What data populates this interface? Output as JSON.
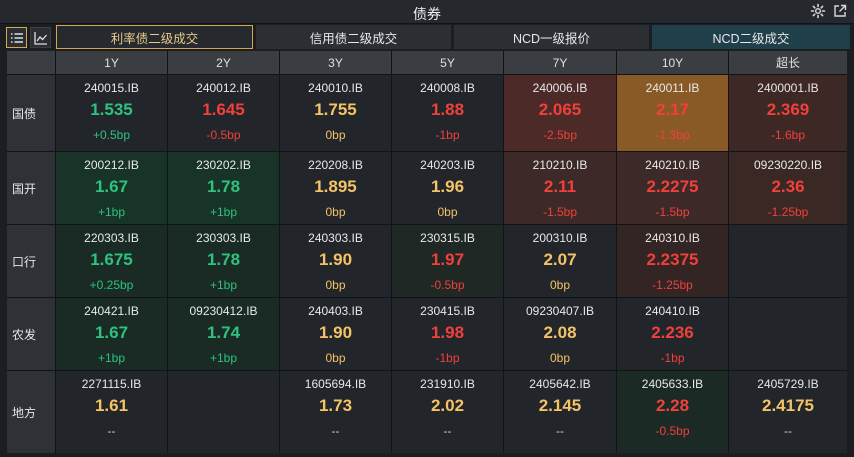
{
  "window": {
    "title": "债券"
  },
  "tabs": [
    "利率债二级成交",
    "信用债二级成交",
    "NCD一级报价",
    "NCD二级成交"
  ],
  "columns": [
    "1Y",
    "2Y",
    "3Y",
    "5Y",
    "7Y",
    "10Y",
    "超长"
  ],
  "rows": [
    {
      "label": "国债",
      "cells": [
        {
          "code": "240015.IB",
          "rate": "1.535",
          "change": "+0.5bp",
          "trend": "up"
        },
        {
          "code": "240012.IB",
          "rate": "1.645",
          "change": "-0.5bp",
          "trend": "down"
        },
        {
          "code": "240010.IB",
          "rate": "1.755",
          "change": "0bp",
          "trend": "flat"
        },
        {
          "code": "240008.IB",
          "rate": "1.88",
          "change": "-1bp",
          "trend": "down"
        },
        {
          "code": "240006.IB",
          "rate": "2.065",
          "change": "-2.5bp",
          "trend": "down"
        },
        {
          "code": "240011.IB",
          "rate": "2.17",
          "change": "-1.3bp",
          "trend": "down"
        },
        {
          "code": "2400001.IB",
          "rate": "2.369",
          "change": "-1.6bp",
          "trend": "down"
        }
      ]
    },
    {
      "label": "国开",
      "cells": [
        {
          "code": "200212.IB",
          "rate": "1.67",
          "change": "+1bp",
          "trend": "up"
        },
        {
          "code": "230202.IB",
          "rate": "1.78",
          "change": "+1bp",
          "trend": "up"
        },
        {
          "code": "220208.IB",
          "rate": "1.895",
          "change": "0bp",
          "trend": "flat"
        },
        {
          "code": "240203.IB",
          "rate": "1.96",
          "change": "0bp",
          "trend": "flat"
        },
        {
          "code": "210210.IB",
          "rate": "2.11",
          "change": "-1.5bp",
          "trend": "down"
        },
        {
          "code": "240210.IB",
          "rate": "2.2275",
          "change": "-1.5bp",
          "trend": "down"
        },
        {
          "code": "09230220.IB",
          "rate": "2.36",
          "change": "-1.25bp",
          "trend": "down"
        }
      ]
    },
    {
      "label": "口行",
      "cells": [
        {
          "code": "220303.IB",
          "rate": "1.675",
          "change": "+0.25bp",
          "trend": "up"
        },
        {
          "code": "230303.IB",
          "rate": "1.78",
          "change": "+1bp",
          "trend": "up"
        },
        {
          "code": "240303.IB",
          "rate": "1.90",
          "change": "0bp",
          "trend": "flat"
        },
        {
          "code": "230315.IB",
          "rate": "1.97",
          "change": "-0.5bp",
          "trend": "down"
        },
        {
          "code": "200310.IB",
          "rate": "2.07",
          "change": "0bp",
          "trend": "flat"
        },
        {
          "code": "240310.IB",
          "rate": "2.2375",
          "change": "-1.25bp",
          "trend": "down"
        },
        {
          "code": "",
          "rate": "",
          "change": "",
          "trend": "none"
        }
      ]
    },
    {
      "label": "农发",
      "cells": [
        {
          "code": "240421.IB",
          "rate": "1.67",
          "change": "+1bp",
          "trend": "up"
        },
        {
          "code": "09230412.IB",
          "rate": "1.74",
          "change": "+1bp",
          "trend": "up"
        },
        {
          "code": "240403.IB",
          "rate": "1.90",
          "change": "0bp",
          "trend": "flat"
        },
        {
          "code": "230415.IB",
          "rate": "1.98",
          "change": "-1bp",
          "trend": "down"
        },
        {
          "code": "09230407.IB",
          "rate": "2.08",
          "change": "0bp",
          "trend": "flat"
        },
        {
          "code": "240410.IB",
          "rate": "2.236",
          "change": "-1bp",
          "trend": "down"
        },
        {
          "code": "",
          "rate": "",
          "change": "",
          "trend": "none"
        }
      ]
    },
    {
      "label": "地方",
      "cells": [
        {
          "code": "2271115.IB",
          "rate": "1.61",
          "change": "--",
          "trend": "none"
        },
        {
          "code": "",
          "rate": "",
          "change": "",
          "trend": "none"
        },
        {
          "code": "1605694.IB",
          "rate": "1.73",
          "change": "--",
          "trend": "none"
        },
        {
          "code": "231910.IB",
          "rate": "2.02",
          "change": "--",
          "trend": "none"
        },
        {
          "code": "2405642.IB",
          "rate": "2.145",
          "change": "--",
          "trend": "none"
        },
        {
          "code": "2405633.IB",
          "rate": "2.28",
          "change": "-0.5bp",
          "trend": "down"
        },
        {
          "code": "2405729.IB",
          "rate": "2.4175",
          "change": "--",
          "trend": "none"
        }
      ]
    }
  ],
  "colors": {
    "up_text": "#2ec27e",
    "down_text": "#f0403c",
    "flat_text": "#f3c366",
    "accent_border": "#d5a64c"
  }
}
